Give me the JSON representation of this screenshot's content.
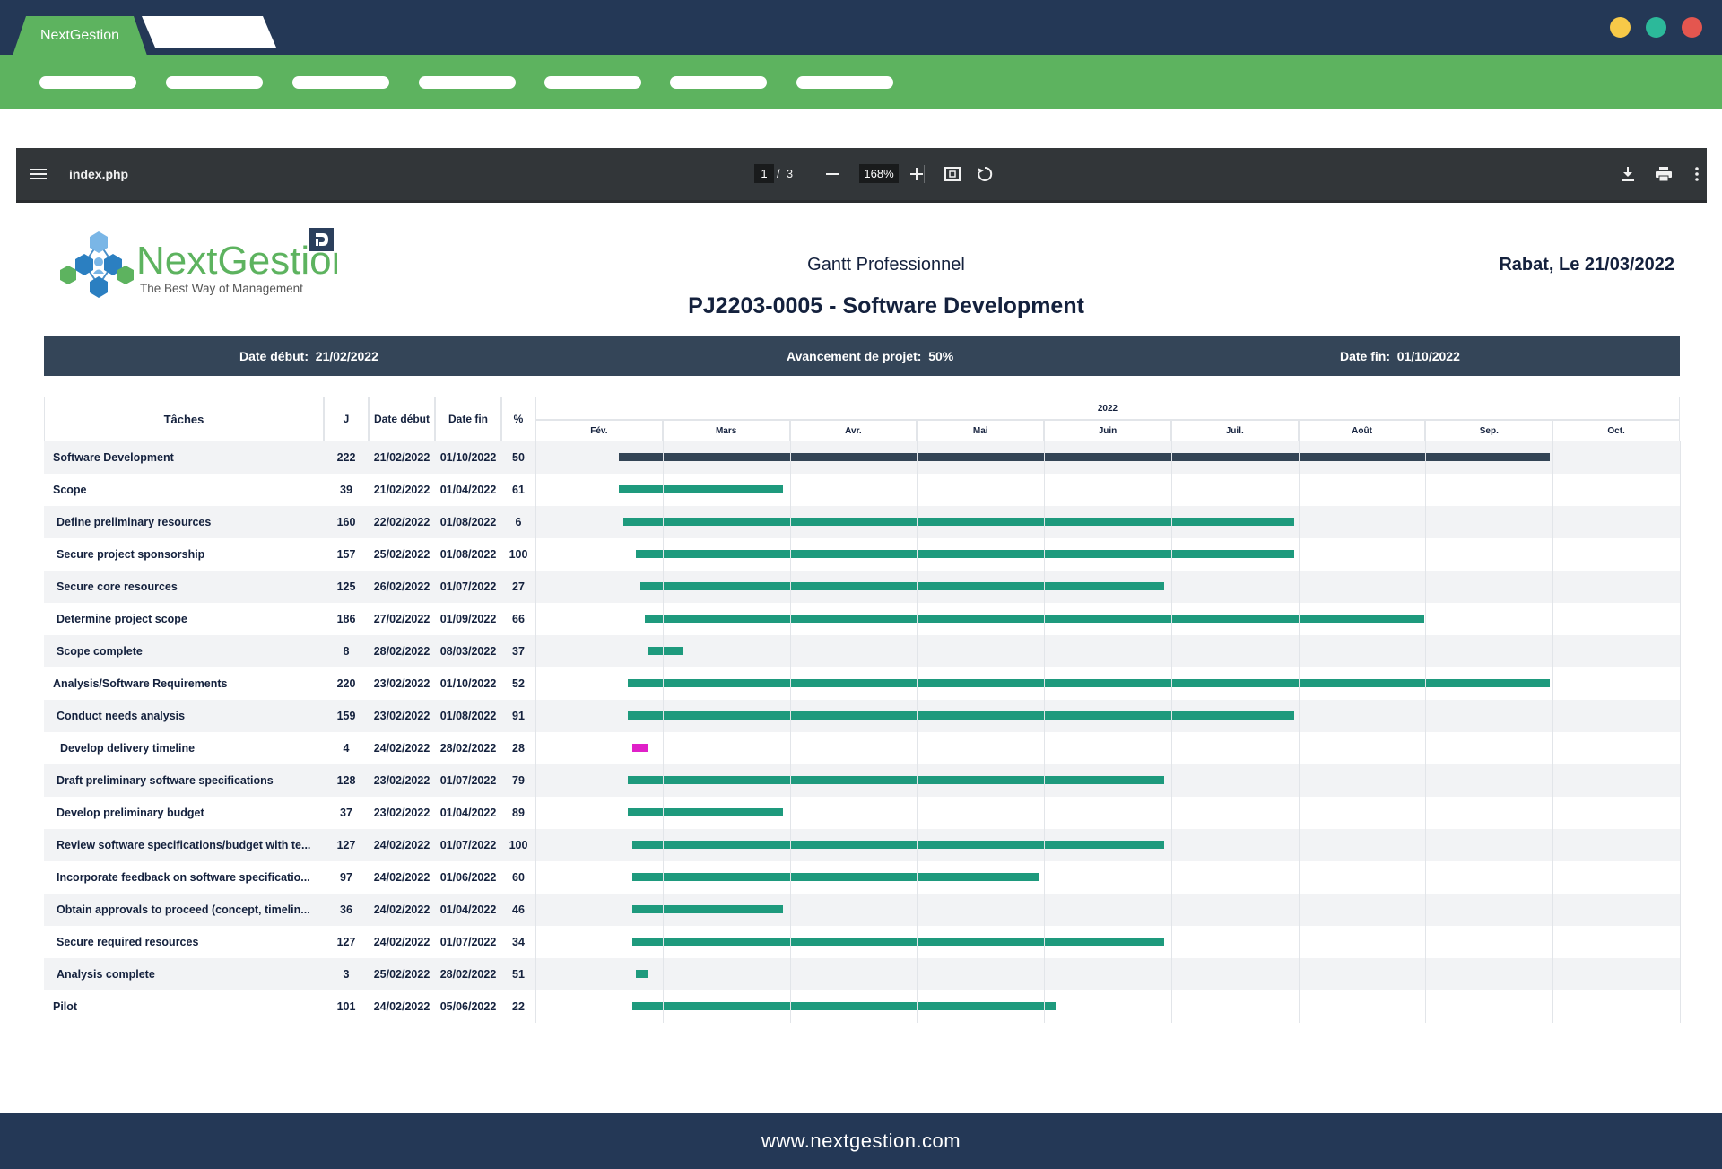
{
  "browser": {
    "tab_title": "NextGestion",
    "window_colors": [
      "#f7c948",
      "#2cb99a",
      "#e4564f"
    ]
  },
  "viewer": {
    "file_name": "index.php",
    "current_page": "1",
    "page_separator": "/",
    "total_pages": "3",
    "zoom": "168%"
  },
  "document": {
    "logo_brand": "NextGestion",
    "logo_tagline": "The Best Way of Management",
    "subtitle": "Gantt Professionnel",
    "date_line": "Rabat, Le 21/03/2022",
    "title": "PJ2203-0005 - Software Development",
    "start_label": "Date début:",
    "start_value": "21/02/2022",
    "progress_label": "Avancement de projet:",
    "progress_value": "50%",
    "end_label": "Date fin:",
    "end_value": "01/10/2022"
  },
  "gantt": {
    "columns": [
      "Tâches",
      "J",
      "Date début",
      "Date fin",
      "%"
    ],
    "year": "2022",
    "months": [
      "Fév.",
      "Mars",
      "Avr.",
      "Mai",
      "Juin",
      "Juil.",
      "Août",
      "Sep.",
      "Oct."
    ],
    "tasks": [
      {
        "name": "Software Development",
        "days": "222",
        "start": "21/02/2022",
        "end": "01/10/2022",
        "pct": "50",
        "level": 0,
        "color": "#334455"
      },
      {
        "name": "Scope",
        "days": "39",
        "start": "21/02/2022",
        "end": "01/04/2022",
        "pct": "61",
        "level": 0,
        "color": "#1e9a7d"
      },
      {
        "name": "Define preliminary resources",
        "days": "160",
        "start": "22/02/2022",
        "end": "01/08/2022",
        "pct": "6",
        "level": 1,
        "color": "#1e9a7d"
      },
      {
        "name": "Secure project sponsorship",
        "days": "157",
        "start": "25/02/2022",
        "end": "01/08/2022",
        "pct": "100",
        "level": 1,
        "color": "#1e9a7d"
      },
      {
        "name": "Secure core resources",
        "days": "125",
        "start": "26/02/2022",
        "end": "01/07/2022",
        "pct": "27",
        "level": 1,
        "color": "#1e9a7d"
      },
      {
        "name": "Determine project scope",
        "days": "186",
        "start": "27/02/2022",
        "end": "01/09/2022",
        "pct": "66",
        "level": 1,
        "color": "#1e9a7d"
      },
      {
        "name": "Scope complete",
        "days": "8",
        "start": "28/02/2022",
        "end": "08/03/2022",
        "pct": "37",
        "level": 1,
        "color": "#1e9a7d"
      },
      {
        "name": "Analysis/Software Requirements",
        "days": "220",
        "start": "23/02/2022",
        "end": "01/10/2022",
        "pct": "52",
        "level": 0,
        "color": "#1e9a7d"
      },
      {
        "name": "Conduct needs analysis",
        "days": "159",
        "start": "23/02/2022",
        "end": "01/08/2022",
        "pct": "91",
        "level": 1,
        "color": "#1e9a7d"
      },
      {
        "name": "Develop delivery timeline",
        "days": "4",
        "start": "24/02/2022",
        "end": "28/02/2022",
        "pct": "28",
        "level": 2,
        "color": "#e020c8"
      },
      {
        "name": "Draft preliminary software specifications",
        "days": "128",
        "start": "23/02/2022",
        "end": "01/07/2022",
        "pct": "79",
        "level": 1,
        "color": "#1e9a7d"
      },
      {
        "name": "Develop preliminary budget",
        "days": "37",
        "start": "23/02/2022",
        "end": "01/04/2022",
        "pct": "89",
        "level": 1,
        "color": "#1e9a7d"
      },
      {
        "name": "Review software specifications/budget with te...",
        "days": "127",
        "start": "24/02/2022",
        "end": "01/07/2022",
        "pct": "100",
        "level": 1,
        "color": "#1e9a7d"
      },
      {
        "name": "Incorporate feedback on software specificatio...",
        "days": "97",
        "start": "24/02/2022",
        "end": "01/06/2022",
        "pct": "60",
        "level": 1,
        "color": "#1e9a7d"
      },
      {
        "name": "Obtain approvals to proceed (concept, timelin...",
        "days": "36",
        "start": "24/02/2022",
        "end": "01/04/2022",
        "pct": "46",
        "level": 1,
        "color": "#1e9a7d"
      },
      {
        "name": "Secure required resources",
        "days": "127",
        "start": "24/02/2022",
        "end": "01/07/2022",
        "pct": "34",
        "level": 1,
        "color": "#1e9a7d"
      },
      {
        "name": "Analysis complete",
        "days": "3",
        "start": "25/02/2022",
        "end": "28/02/2022",
        "pct": "51",
        "level": 1,
        "color": "#1e9a7d"
      },
      {
        "name": "Pilot",
        "days": "101",
        "start": "24/02/2022",
        "end": "05/06/2022",
        "pct": "22",
        "level": 0,
        "color": "#1e9a7d"
      }
    ]
  },
  "footer": {
    "url": "www.nextgestion.com"
  }
}
